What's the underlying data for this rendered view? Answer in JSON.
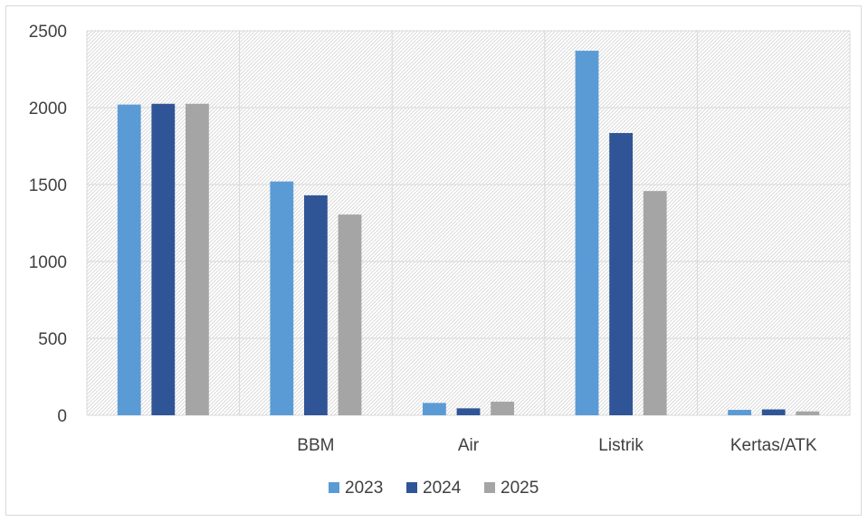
{
  "chart_data": {
    "type": "bar",
    "title": "",
    "xlabel": "",
    "ylabel": "",
    "categories": [
      "",
      "BBM",
      "Air",
      "Listrik",
      "Kertas/ATK"
    ],
    "series": [
      {
        "name": "2023",
        "color": "#5b9bd5",
        "values": [
          2020,
          1520,
          80,
          2370,
          35
        ]
      },
      {
        "name": "2024",
        "color": "#2f5597",
        "values": [
          2025,
          1430,
          45,
          1835,
          38
        ]
      },
      {
        "name": "2025",
        "color": "#a5a5a5",
        "values": [
          2025,
          1305,
          88,
          1458,
          25
        ]
      }
    ],
    "ylim": [
      0,
      2500
    ],
    "yticks": [
      0,
      500,
      1000,
      1500,
      2000,
      2500
    ],
    "grid": true,
    "legend_position": "bottom"
  }
}
